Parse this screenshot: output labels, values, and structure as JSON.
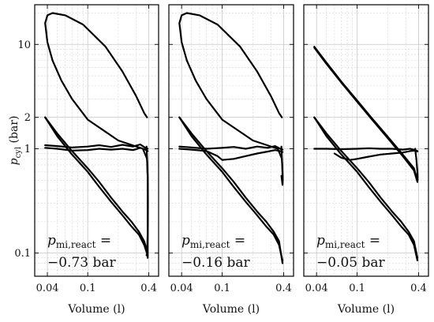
{
  "chart_data": {
    "type": "line",
    "x_scale": "log",
    "y_scale": "log",
    "xlim": [
      0.03,
      0.5
    ],
    "ylim": [
      0.06,
      24
    ],
    "grid": true,
    "ylabel_symbol": "p",
    "ylabel_sub": "cyl",
    "ylabel_unit": " (bar)",
    "xlabel": "Volume (l)",
    "x_ticks": [
      0.04,
      0.1,
      0.4
    ],
    "x_tick_labels": [
      "0.04",
      "0.1",
      "0.4"
    ],
    "y_ticks": [
      0.1,
      1,
      2,
      10
    ],
    "y_tick_labels": [
      "0.1",
      "1",
      "2",
      "10"
    ],
    "annotation_symbol": "p",
    "annotation_sub": "mi,react",
    "annotation_eq": " =",
    "panels": [
      {
        "annotation_value": "−0.73 bar",
        "series": [
          {
            "x": [
              0.385,
              0.36,
              0.3,
              0.22,
              0.15,
              0.09,
              0.06,
              0.045,
              0.04,
              0.038,
              0.04,
              0.045,
              0.055,
              0.07,
              0.1,
              0.2,
              0.35,
              0.385,
              0.39,
              0.39,
              0.39,
              0.39
            ],
            "y": [
              2.0,
              2.2,
              3.2,
              5.5,
              9.5,
              15.5,
              19.0,
              20.0,
              19.0,
              16.0,
              10.5,
              7.0,
              4.5,
              3.0,
              1.9,
              1.2,
              1.0,
              0.8,
              0.55,
              0.3,
              0.15,
              0.09
            ]
          },
          {
            "x": [
              0.038,
              0.05,
              0.07,
              0.1,
              0.13,
              0.17,
              0.22,
              0.27,
              0.32,
              0.36,
              0.39
            ],
            "y": [
              2.0,
              1.4,
              0.95,
              0.65,
              0.48,
              0.34,
              0.25,
              0.2,
              0.16,
              0.13,
              0.1
            ]
          },
          {
            "x": [
              0.038,
              0.05,
              0.07,
              0.1,
              0.13,
              0.17,
              0.22,
              0.27,
              0.32,
              0.36,
              0.39
            ],
            "y": [
              2.0,
              1.32,
              0.88,
              0.6,
              0.43,
              0.31,
              0.23,
              0.18,
              0.15,
              0.12,
              0.095
            ]
          },
          {
            "x": [
              0.038,
              0.05,
              0.07,
              0.1,
              0.13,
              0.17,
              0.22,
              0.28,
              0.33,
              0.37,
              0.39
            ],
            "y": [
              1.08,
              1.06,
              1.03,
              1.05,
              1.08,
              1.04,
              1.09,
              1.05,
              1.1,
              1.02,
              1.0
            ]
          },
          {
            "x": [
              0.038,
              0.05,
              0.07,
              0.1,
              0.13,
              0.17,
              0.22,
              0.28,
              0.33,
              0.37,
              0.39
            ],
            "y": [
              1.02,
              1.0,
              0.96,
              0.97,
              1.0,
              0.98,
              1.0,
              0.97,
              1.02,
              0.98,
              0.95
            ]
          },
          {
            "x": [
              0.38,
              0.385,
              0.39,
              0.392,
              0.39,
              0.385,
              0.38
            ],
            "y": [
              1.05,
              0.8,
              0.55,
              0.3,
              0.15,
              0.1,
              0.095
            ]
          }
        ]
      },
      {
        "annotation_value": "−0.16 bar",
        "series": [
          {
            "x": [
              0.385,
              0.36,
              0.3,
              0.22,
              0.15,
              0.09,
              0.06,
              0.045,
              0.04,
              0.038,
              0.04,
              0.045,
              0.055,
              0.07,
              0.1,
              0.2,
              0.35,
              0.385,
              0.39,
              0.39
            ],
            "y": [
              2.0,
              2.2,
              3.2,
              5.5,
              9.5,
              15.5,
              19.0,
              20.0,
              19.0,
              16.0,
              10.5,
              7.0,
              4.5,
              3.0,
              1.9,
              1.2,
              1.0,
              0.8,
              0.6,
              0.5
            ]
          },
          {
            "x": [
              0.038,
              0.05,
              0.07,
              0.1,
              0.13,
              0.17,
              0.22,
              0.27,
              0.32,
              0.36,
              0.39
            ],
            "y": [
              2.0,
              1.4,
              0.95,
              0.65,
              0.48,
              0.34,
              0.25,
              0.2,
              0.16,
              0.13,
              0.08
            ]
          },
          {
            "x": [
              0.038,
              0.05,
              0.07,
              0.1,
              0.13,
              0.17,
              0.22,
              0.27,
              0.32,
              0.36,
              0.39
            ],
            "y": [
              2.0,
              1.32,
              0.88,
              0.6,
              0.43,
              0.31,
              0.23,
              0.18,
              0.15,
              0.12,
              0.085
            ]
          },
          {
            "x": [
              0.038,
              0.05,
              0.07,
              0.1,
              0.13,
              0.17,
              0.22,
              0.28,
              0.33,
              0.37,
              0.39
            ],
            "y": [
              1.05,
              1.03,
              1.0,
              1.02,
              1.04,
              1.0,
              1.05,
              1.02,
              1.06,
              1.0,
              0.98
            ]
          },
          {
            "x": [
              0.038,
              0.05,
              0.07,
              0.09,
              0.1,
              0.13,
              0.17,
              0.22,
              0.28,
              0.33,
              0.37,
              0.39
            ],
            "y": [
              1.0,
              0.98,
              0.95,
              0.85,
              0.78,
              0.8,
              0.85,
              0.9,
              0.94,
              0.97,
              0.95,
              0.93
            ]
          },
          {
            "x": [
              0.38,
              0.385,
              0.39,
              0.392,
              0.39,
              0.385,
              0.38
            ],
            "y": [
              1.05,
              0.8,
              0.6,
              0.5,
              0.45,
              0.5,
              0.55
            ]
          }
        ]
      },
      {
        "annotation_value": "−0.05 bar",
        "series": [
          {
            "x": [
              0.038,
              0.05,
              0.07,
              0.1,
              0.14,
              0.2,
              0.28,
              0.36,
              0.39
            ],
            "y": [
              9.5,
              6.7,
              4.4,
              2.9,
              1.95,
              1.3,
              0.88,
              0.65,
              0.5
            ]
          },
          {
            "x": [
              0.038,
              0.05,
              0.07,
              0.1,
              0.14,
              0.2,
              0.28,
              0.36,
              0.39
            ],
            "y": [
              9.3,
              6.5,
              4.3,
              2.82,
              1.9,
              1.26,
              0.85,
              0.62,
              0.48
            ]
          },
          {
            "x": [
              0.038,
              0.05,
              0.07,
              0.1,
              0.13,
              0.17,
              0.22,
              0.27,
              0.32,
              0.36,
              0.39
            ],
            "y": [
              2.0,
              1.4,
              0.95,
              0.65,
              0.48,
              0.34,
              0.25,
              0.2,
              0.16,
              0.13,
              0.09
            ]
          },
          {
            "x": [
              0.038,
              0.05,
              0.07,
              0.1,
              0.13,
              0.17,
              0.22,
              0.27,
              0.32,
              0.36,
              0.39
            ],
            "y": [
              2.0,
              1.32,
              0.88,
              0.6,
              0.43,
              0.31,
              0.23,
              0.18,
              0.15,
              0.12,
              0.085
            ]
          },
          {
            "x": [
              0.038,
              0.05,
              0.07,
              0.1,
              0.13,
              0.17,
              0.22,
              0.28,
              0.33,
              0.37,
              0.39
            ],
            "y": [
              1.0,
              1.0,
              0.99,
              1.0,
              1.01,
              1.0,
              1.0,
              0.98,
              1.0,
              0.97,
              0.95
            ]
          },
          {
            "x": [
              0.06,
              0.07,
              0.085,
              0.1,
              0.13,
              0.17,
              0.22,
              0.28,
              0.33,
              0.37,
              0.39
            ],
            "y": [
              0.9,
              0.82,
              0.78,
              0.8,
              0.84,
              0.88,
              0.9,
              0.92,
              0.95,
              0.96,
              0.94
            ]
          },
          {
            "x": [
              0.37,
              0.38,
              0.39,
              0.392,
              0.39
            ],
            "y": [
              1.0,
              0.8,
              0.6,
              0.5,
              0.55
            ]
          }
        ]
      }
    ]
  }
}
